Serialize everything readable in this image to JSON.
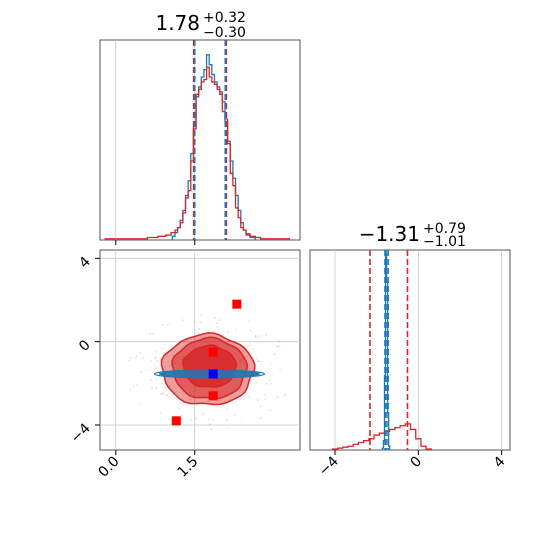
{
  "colors": {
    "red": "#d62728",
    "red_fill": "#d62728",
    "blue": "#1f77b4",
    "marker_red": "#ff0000",
    "marker_blue": "#0000ff"
  },
  "chart_data": [
    {
      "type": "histogram",
      "panel": "marginal-param-1",
      "title": {
        "median": "1.78",
        "plus": "+0.32",
        "minus": "−0.30"
      },
      "xlim": [
        -0.3,
        3.5
      ],
      "series": [
        {
          "color": "red",
          "quantiles": [
            1.48,
            1.78,
            2.1
          ],
          "bin_centers": [
            -0.1,
            0.1,
            0.3,
            0.5,
            0.7,
            0.9,
            1.0,
            1.1,
            1.15,
            1.2,
            1.25,
            1.3,
            1.35,
            1.4,
            1.45,
            1.5,
            1.55,
            1.6,
            1.65,
            1.7,
            1.75,
            1.8,
            1.85,
            1.9,
            1.95,
            2.0,
            2.05,
            2.1,
            2.15,
            2.2,
            2.25,
            2.3,
            2.35,
            2.4,
            2.45,
            2.5,
            2.6,
            2.7,
            2.8,
            3.0,
            3.2
          ],
          "counts": [
            1,
            1,
            1,
            1,
            2,
            3,
            4,
            6,
            8,
            10,
            14,
            22,
            34,
            40,
            64,
            90,
            118,
            122,
            128,
            130,
            140,
            132,
            128,
            126,
            122,
            118,
            104,
            96,
            78,
            54,
            44,
            26,
            18,
            10,
            8,
            5,
            3,
            2,
            1,
            1,
            1
          ]
        },
        {
          "color": "blue",
          "quantiles": [
            1.5,
            1.78,
            2.08
          ],
          "bin_centers": [
            1.1,
            1.15,
            1.2,
            1.25,
            1.3,
            1.35,
            1.4,
            1.45,
            1.5,
            1.55,
            1.6,
            1.65,
            1.7,
            1.75,
            1.8,
            1.85,
            1.9,
            1.95,
            2.0,
            2.05,
            2.1,
            2.15,
            2.2,
            2.25,
            2.3,
            2.35,
            2.4,
            2.45,
            2.5,
            2.6
          ],
          "counts": [
            3,
            6,
            10,
            16,
            24,
            36,
            48,
            70,
            92,
            116,
            124,
            132,
            138,
            150,
            142,
            134,
            128,
            124,
            120,
            112,
            98,
            80,
            64,
            50,
            36,
            24,
            14,
            8,
            4,
            2
          ]
        }
      ]
    },
    {
      "type": "scatter",
      "panel": "joint-param-1-vs-param-2",
      "xlim": [
        -0.3,
        3.5
      ],
      "ylim": [
        -5.2,
        4.4
      ],
      "xticks": [
        "0.0",
        "1.5"
      ],
      "xtick_values": [
        0.0,
        1.5
      ],
      "yticks": [
        "4",
        "0",
        "−4"
      ],
      "ytick_values": [
        4,
        0,
        -4
      ],
      "red_contours": [
        {
          "level": 1,
          "center": [
            1.78,
            -1.2
          ],
          "rx": 0.5,
          "ry": 1.0
        },
        {
          "level": 2,
          "center": [
            1.78,
            -1.3
          ],
          "rx": 0.7,
          "ry": 1.45
        },
        {
          "level": 3,
          "center": [
            1.75,
            -1.35
          ],
          "rx": 0.87,
          "ry": 1.7
        }
      ],
      "blue_contour": {
        "center": [
          1.78,
          -1.55
        ],
        "rx": 0.95,
        "ry": 0.12
      },
      "red_markers": [
        [
          2.3,
          1.8
        ],
        [
          1.85,
          -0.5
        ],
        [
          1.85,
          -2.6
        ],
        [
          1.15,
          -3.8
        ]
      ],
      "blue_marker": [
        1.85,
        -1.55
      ]
    },
    {
      "type": "histogram",
      "panel": "marginal-param-2",
      "title": {
        "median": "−1.31",
        "plus": "+0.79",
        "minus": "−1.01"
      },
      "xlim": [
        -5.2,
        4.4
      ],
      "xticks": [
        "−4",
        "0",
        "4"
      ],
      "xtick_values": [
        -4,
        0,
        4
      ],
      "series": [
        {
          "color": "red",
          "quantiles": [
            -2.32,
            -1.31,
            -0.52
          ],
          "bin_centers": [
            -4.0,
            -3.75,
            -3.5,
            -3.25,
            -3.0,
            -2.75,
            -2.5,
            -2.25,
            -2.0,
            -1.75,
            -1.5,
            -1.25,
            -1.0,
            -0.75,
            -0.5,
            -0.25,
            0.0,
            0.25,
            0.5
          ],
          "counts": [
            1,
            2,
            3,
            4,
            6,
            8,
            10,
            12,
            16,
            18,
            20,
            22,
            24,
            26,
            28,
            22,
            12,
            4,
            1
          ]
        },
        {
          "color": "blue",
          "quantiles": [
            -1.6,
            -1.55,
            -1.45
          ],
          "bin_centers": [
            -1.7,
            -1.65,
            -1.6,
            -1.55,
            -1.5,
            -1.45,
            -1.4
          ],
          "counts": [
            2,
            10,
            80,
            210,
            180,
            40,
            4
          ]
        }
      ]
    }
  ]
}
